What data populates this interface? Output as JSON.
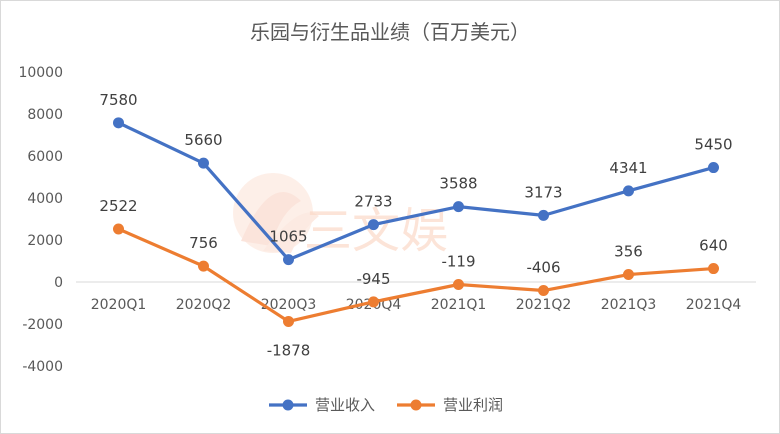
{
  "chart_data": {
    "type": "line",
    "title": "乐园与衍生品业绩（百万美元）",
    "categories": [
      "2020Q1",
      "2020Q2",
      "2020Q3",
      "2020Q4",
      "2021Q1",
      "2021Q2",
      "2021Q3",
      "2021Q4"
    ],
    "ylim": [
      -4000,
      10000
    ],
    "yticks": [
      -4000,
      -2000,
      0,
      2000,
      4000,
      6000,
      8000,
      10000
    ],
    "grid": false,
    "legend_position": "bottom",
    "series": [
      {
        "name": "营业收入",
        "color": "#4472C4",
        "values": [
          7580,
          5660,
          1065,
          2733,
          3588,
          3173,
          4341,
          5450
        ]
      },
      {
        "name": "营业利润",
        "color": "#ED7D31",
        "values": [
          2522,
          756,
          -1878,
          -945,
          -119,
          -406,
          356,
          640
        ]
      }
    ]
  },
  "watermark": {
    "text": "三文娱"
  }
}
